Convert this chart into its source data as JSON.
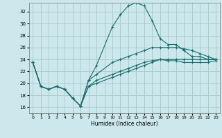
{
  "xlabel": "Humidex (Indice chaleur)",
  "bg_color": "#cce8ec",
  "grid_color": "#aacccc",
  "line_color": "#1a6b6b",
  "xlim": [
    -0.5,
    23.5
  ],
  "ylim": [
    15,
    33.5
  ],
  "yticks": [
    16,
    18,
    20,
    22,
    24,
    26,
    28,
    30,
    32
  ],
  "xticks": [
    0,
    1,
    2,
    3,
    4,
    5,
    6,
    7,
    8,
    9,
    10,
    11,
    12,
    13,
    14,
    15,
    16,
    17,
    18,
    19,
    20,
    21,
    22,
    23
  ],
  "series": [
    {
      "x": [
        0,
        1,
        2,
        3,
        4,
        5,
        6,
        7,
        8,
        10,
        11,
        12,
        13,
        14,
        15,
        16,
        17,
        18,
        19,
        20,
        21,
        22,
        23
      ],
      "y": [
        23.5,
        19.5,
        19.0,
        19.5,
        19.0,
        17.5,
        16.2,
        20.5,
        23.0,
        29.5,
        31.5,
        33.0,
        33.5,
        33.0,
        30.5,
        27.5,
        26.5,
        26.5,
        25.5,
        24.5,
        24.5,
        24.0,
        24.0
      ]
    },
    {
      "x": [
        0,
        1,
        2,
        3,
        4,
        5,
        6,
        7,
        8,
        10,
        11,
        12,
        13,
        14,
        15,
        16,
        17,
        18,
        19,
        20,
        21,
        22,
        23
      ],
      "y": [
        23.5,
        19.5,
        19.0,
        19.5,
        19.0,
        17.5,
        16.2,
        19.5,
        20.5,
        21.5,
        22.0,
        22.5,
        23.0,
        23.5,
        23.8,
        24.0,
        23.8,
        23.8,
        23.5,
        23.5,
        23.5,
        23.5,
        23.8
      ]
    },
    {
      "x": [
        0,
        1,
        2,
        3,
        4,
        5,
        6,
        7,
        8,
        10,
        11,
        12,
        13,
        14,
        15,
        16,
        17,
        18,
        19,
        20,
        21,
        22,
        23
      ],
      "y": [
        23.5,
        19.5,
        19.0,
        19.5,
        19.0,
        17.5,
        16.2,
        19.5,
        20.0,
        21.0,
        21.5,
        22.0,
        22.5,
        23.0,
        23.5,
        24.0,
        24.0,
        24.0,
        24.0,
        24.0,
        24.0,
        24.0,
        24.0
      ]
    },
    {
      "x": [
        0,
        1,
        2,
        3,
        4,
        5,
        6,
        7,
        8,
        10,
        11,
        12,
        13,
        14,
        15,
        16,
        17,
        18,
        19,
        20,
        21,
        22,
        23
      ],
      "y": [
        23.5,
        19.5,
        19.0,
        19.5,
        19.0,
        17.5,
        16.2,
        20.5,
        21.5,
        23.5,
        24.0,
        24.5,
        25.0,
        25.5,
        26.0,
        26.0,
        26.0,
        26.0,
        25.8,
        25.5,
        25.0,
        24.5,
        24.0
      ]
    }
  ]
}
